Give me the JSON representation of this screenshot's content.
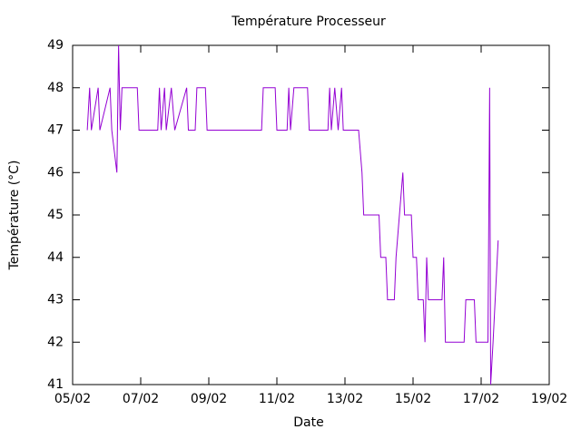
{
  "chart_data": {
    "type": "line",
    "title": "Température Processeur",
    "xlabel": "Date",
    "ylabel": "Température (°C)",
    "color": "#9400d3",
    "x": [
      5.43,
      5.5,
      5.55,
      5.75,
      5.8,
      6.1,
      6.15,
      6.3,
      6.35,
      6.4,
      6.45,
      6.9,
      6.95,
      7.5,
      7.55,
      7.6,
      7.7,
      7.75,
      7.9,
      8.0,
      8.35,
      8.4,
      8.6,
      8.65,
      8.9,
      8.95,
      10.55,
      10.6,
      10.95,
      11.0,
      11.3,
      11.35,
      11.4,
      11.5,
      11.9,
      11.95,
      12.5,
      12.55,
      12.6,
      12.7,
      12.8,
      12.9,
      12.95,
      13.4,
      13.5,
      13.55,
      14.0,
      14.05,
      14.2,
      14.25,
      14.45,
      14.5,
      14.6,
      14.7,
      14.75,
      14.95,
      15.0,
      15.1,
      15.15,
      15.3,
      15.35,
      15.4,
      15.45,
      15.85,
      15.9,
      15.95,
      16.5,
      16.55,
      16.8,
      16.85,
      17.2,
      17.25,
      17.28,
      17.35,
      17.5
    ],
    "values": [
      47,
      48,
      47,
      48,
      47,
      48,
      47,
      46,
      49,
      47,
      48,
      48,
      47,
      47,
      48,
      47,
      48,
      47,
      48,
      47,
      48,
      47,
      47,
      48,
      48,
      47,
      47,
      48,
      48,
      47,
      47,
      48,
      47,
      48,
      48,
      47,
      47,
      48,
      47,
      48,
      47,
      48,
      47,
      47,
      46,
      45,
      45,
      44,
      44,
      43,
      43,
      44,
      45,
      46,
      45,
      45,
      44,
      44,
      43,
      43,
      42,
      44,
      43,
      43,
      44,
      42,
      42,
      43,
      43,
      42,
      42,
      48,
      41,
      42,
      44.4
    ],
    "xlim": [
      5,
      19
    ],
    "xticks": [
      {
        "value": 5,
        "label": "05/02"
      },
      {
        "value": 7,
        "label": "07/02"
      },
      {
        "value": 9,
        "label": "09/02"
      },
      {
        "value": 11,
        "label": "11/02"
      },
      {
        "value": 13,
        "label": "13/02"
      },
      {
        "value": 15,
        "label": "15/02"
      },
      {
        "value": 17,
        "label": "17/02"
      },
      {
        "value": 19,
        "label": "19/02"
      }
    ],
    "ylim": [
      41,
      49
    ],
    "yticks": [
      41,
      42,
      43,
      44,
      45,
      46,
      47,
      48,
      49
    ],
    "grid": false
  }
}
